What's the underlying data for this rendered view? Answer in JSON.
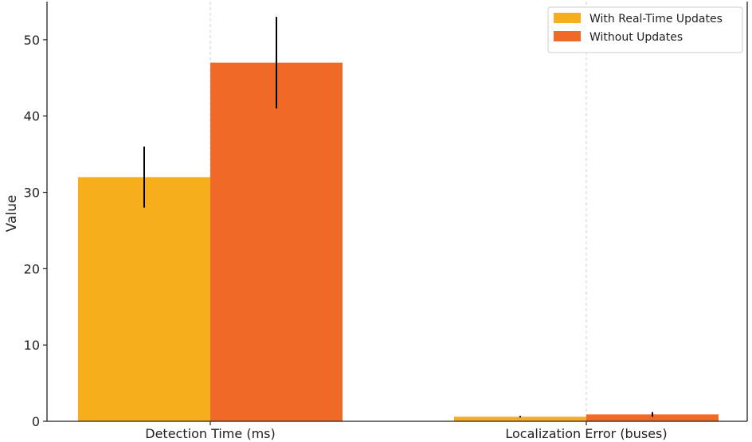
{
  "chart_data": {
    "type": "bar",
    "title": "",
    "xlabel": "",
    "ylabel": "Value",
    "categories": [
      "Detection Time (ms)",
      "Localization Error (buses)"
    ],
    "series": [
      {
        "name": "With Real-Time Updates",
        "color": "#F7AE1D",
        "values": [
          32,
          0.6
        ],
        "errors": [
          4,
          0.1
        ]
      },
      {
        "name": "Without Updates",
        "color": "#EF6A27",
        "values": [
          47,
          0.9
        ],
        "errors": [
          6,
          0.3
        ]
      }
    ],
    "ylim": [
      0,
      55
    ],
    "yticks": [
      0,
      10,
      20,
      30,
      40,
      50
    ],
    "grid": "vertical-dashed",
    "legend": "top-right"
  }
}
